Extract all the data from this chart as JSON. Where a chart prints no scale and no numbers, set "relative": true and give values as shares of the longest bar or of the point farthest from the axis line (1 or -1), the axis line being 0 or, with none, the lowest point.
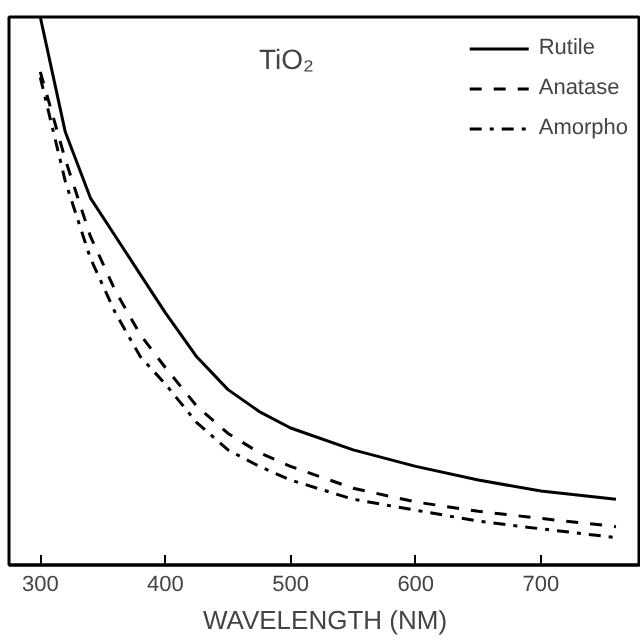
{
  "chart_data": {
    "type": "line",
    "xlabel": "WAVELENGTH (NM)",
    "annotations": [
      "TiO₂"
    ],
    "relative": true,
    "x": [
      300,
      320,
      340,
      360,
      380,
      400,
      425,
      450,
      475,
      500,
      550,
      600,
      650,
      700,
      760
    ],
    "xlim": [
      275,
      780
    ],
    "xticks": [
      300,
      400,
      500,
      600,
      700
    ],
    "grid": false,
    "legend": "top right",
    "tick_labels": "x",
    "series": [
      {
        "name": "Rutile",
        "color": "#000000",
        "line_style": "solid",
        "values": [
          1.0,
          0.79,
          0.67,
          0.6,
          0.53,
          0.46,
          0.38,
          0.32,
          0.28,
          0.25,
          0.21,
          0.18,
          0.155,
          0.135,
          0.12
        ]
      },
      {
        "name": "Anatase",
        "color": "#000000",
        "line_style": "dashed",
        "values": [
          0.9,
          0.74,
          0.6,
          0.5,
          0.42,
          0.36,
          0.29,
          0.24,
          0.205,
          0.18,
          0.14,
          0.115,
          0.098,
          0.085,
          0.07
        ]
      },
      {
        "name": "Amorpho",
        "color": "#000000",
        "line_style": "dashdot",
        "values": [
          0.89,
          0.7,
          0.56,
          0.46,
          0.38,
          0.33,
          0.26,
          0.21,
          0.18,
          0.155,
          0.12,
          0.1,
          0.08,
          0.066,
          0.05
        ]
      }
    ]
  }
}
